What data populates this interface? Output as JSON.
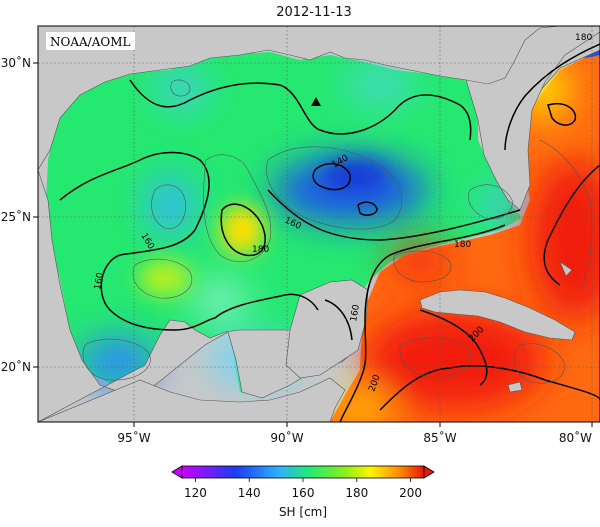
{
  "title": "2012-11-13",
  "watermark": "NOAA/AOML",
  "x_ticks": [
    "95˚W",
    "90˚W",
    "85˚W",
    "80˚W"
  ],
  "y_ticks": [
    "30˚N",
    "25˚N",
    "20˚N"
  ],
  "contour_labels": [
    "140",
    "160",
    "160",
    "160",
    "160",
    "180",
    "180",
    "180",
    "200",
    "200"
  ],
  "colorbar": {
    "label": "SH [cm]",
    "ticks": [
      "120",
      "140",
      "160",
      "180",
      "200"
    ],
    "min": 115,
    "max": 205
  },
  "colors": {
    "land": "#c8c8c8",
    "purple": "#cc00ff",
    "blue": "#1a4ee0",
    "cyan": "#3cc4ff",
    "green": "#20e86a",
    "yellow": "#fff200",
    "orange": "#ff8c00",
    "red": "#e8150a"
  },
  "marker": "triangle-marker"
}
